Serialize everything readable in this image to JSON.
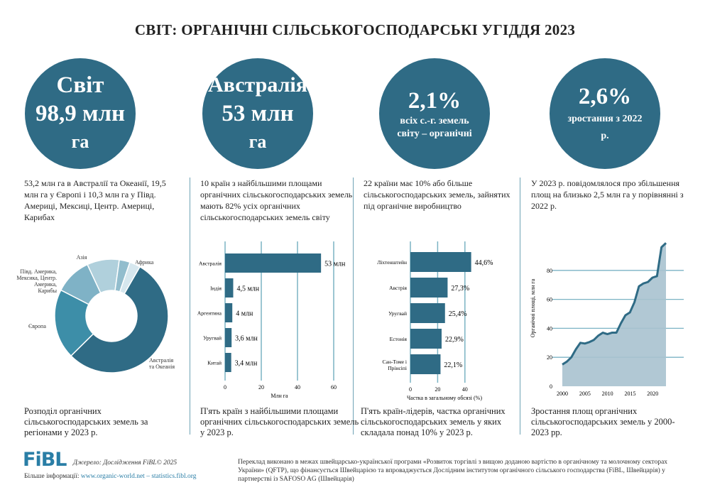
{
  "title": "СВІТ: ОРГАНІЧНІ СІЛЬСЬКОГОСПОДАРСЬКІ УГІДДЯ 2023",
  "circles": [
    {
      "l1": "Світ",
      "l2": "98,9 млн",
      "l3": "га"
    },
    {
      "l1": "Австралія",
      "l2": "53 млн",
      "l3": "га"
    },
    {
      "l1": "2,1%",
      "l2": "всіх с.-г. земель світу – органічні"
    },
    {
      "l1": "2,6%",
      "l2": "зростання з 2022 р."
    }
  ],
  "paragraphs": [
    "53,2 млн га в Австралії та Океанії, 19,5 млн га у Європі і 10,3 млн га у Півд. Америці, Мексиці, Центр. Америці, Карибах",
    "10 країн з найбільшими площами органічних сільськогосподарських земель мають 82% усіх органічних сільськогосподарських земель світу",
    "22 країни має 10% або більше сільськогосподарських земель, зайнятих під органічне виробництво",
    "У 2023 р. повідомлялося про збільшення площ на близько 2,5 млн га у порівнянні з 2022 р."
  ],
  "captions": [
    "Розподіл органічних сільськогосподарських земель за регіонами у 2023 р.",
    "П'ять країн з найбільшими площами органічних сільськогосподарських земель у 2023 р.",
    "П'ять країн-лідерів, частка органічних сільськогосподарських земель у яких складала понад 10% у 2023 р.",
    "Зростання площ органічних сільськогосподарських земель у 2000-2023 рр."
  ],
  "colors": {
    "primary": "#2f6b85",
    "grid": "#7bb3c4",
    "area": "#a9c2cf"
  },
  "chart_data": [
    {
      "type": "pie",
      "title": "Розподіл органічних сільськогосподарських земель за регіонами у 2023 р.",
      "slices": [
        {
          "label": "Австралія та Океанія",
          "value": 53.2,
          "color": "#2f6b85"
        },
        {
          "label": "Європа",
          "value": 19.5,
          "color": "#3d8ea8"
        },
        {
          "label": "Півд. Америка, Мексика, Центр. Америка, Карибы",
          "value": 10.3,
          "color": "#7fb2c6"
        },
        {
          "label": "Азія",
          "value": 9.0,
          "color": "#b0d0dc"
        },
        {
          "label": "Африка",
          "value": 3.0,
          "color": "#92bdcd"
        },
        {
          "label": "",
          "value": 3.0,
          "color": "#d6e7ee"
        }
      ]
    },
    {
      "type": "bar",
      "orientation": "horizontal",
      "categories": [
        "Австралія",
        "Індія",
        "Аргентина",
        "Уругвай",
        "Китай"
      ],
      "values": [
        53,
        4.5,
        4,
        3.6,
        3.4
      ],
      "data_labels": [
        "53 млн",
        "4,5 млн",
        "4 млн",
        "3,6 млн",
        "3,4 млн"
      ],
      "xlabel": "Млн га",
      "xlim": [
        0,
        60
      ],
      "xticks": [
        "0",
        "20",
        "40",
        "60"
      ]
    },
    {
      "type": "bar",
      "orientation": "horizontal",
      "categories": [
        "Ліхтенштейн",
        "Австрія",
        "Уругвай",
        "Естонія",
        "Сан-Томе і Прінсіпі"
      ],
      "values": [
        44.6,
        27.3,
        25.4,
        22.9,
        22.1
      ],
      "data_labels": [
        "44,6%",
        "27,3%",
        "25,4%",
        "22,9%",
        "22,1%"
      ],
      "xlabel": "Частка в загальному обсязі (%)",
      "xlim": [
        0,
        50
      ],
      "xticks": [
        "0",
        "20",
        "40"
      ]
    },
    {
      "type": "area",
      "x": [
        2000,
        2001,
        2002,
        2003,
        2004,
        2005,
        2006,
        2007,
        2008,
        2009,
        2010,
        2011,
        2012,
        2013,
        2014,
        2015,
        2016,
        2017,
        2018,
        2019,
        2020,
        2021,
        2022,
        2023
      ],
      "y": [
        15,
        17,
        20,
        25.5,
        30,
        29.5,
        30.5,
        32,
        35,
        37,
        36,
        37,
        37,
        43.5,
        49,
        51,
        58,
        69,
        71,
        72,
        75,
        76,
        96,
        98.9
      ],
      "ylabel": "Органічні площі, млн га",
      "ylim": [
        0,
        100
      ],
      "yticks": [
        "0",
        "20",
        "40",
        "60",
        "80"
      ],
      "xticks": [
        "2000",
        "2005",
        "2010",
        "2015",
        "2020"
      ]
    }
  ],
  "footer": {
    "logo": "FiBL",
    "source": "Джерело: Дослідження FiBL© 2025",
    "more_label": "Більше інформації:",
    "more_link": "www.organic-world.net – statistics.fibl.org",
    "translation": "Переклад виконано в межах швейцарсько-української програми «Розвиток торгівлі з вищою доданою вартістю в органічному та молочному секторах України» (QFTP), що фінансується Швейцарією та впроваджується Дослідним інститутом органічного сільського господарства (FiBL, Швейцарія) у партнерстві із SAFOSO AG (Швейцарія)"
  }
}
